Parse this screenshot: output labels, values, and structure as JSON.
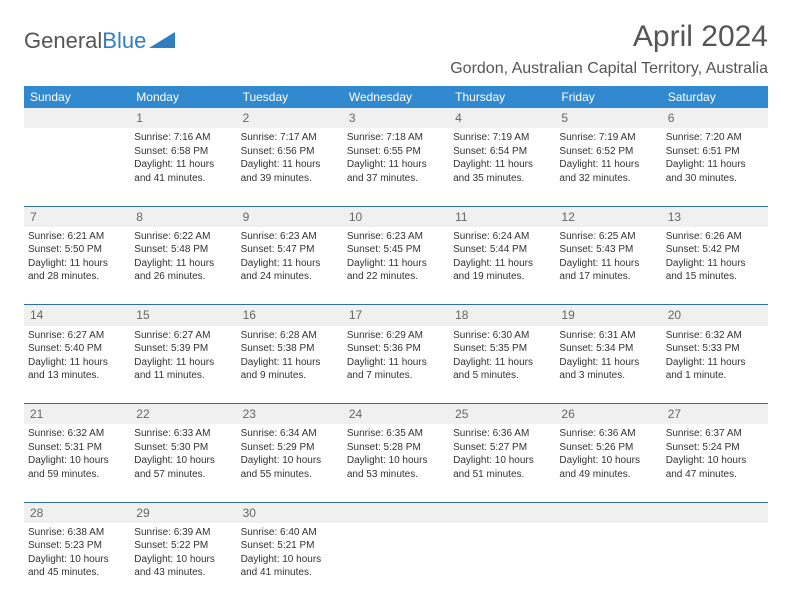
{
  "logo": {
    "text1": "General",
    "text2": "Blue"
  },
  "title": "April 2024",
  "location": "Gordon, Australian Capital Territory, Australia",
  "dayHeaders": [
    "Sunday",
    "Monday",
    "Tuesday",
    "Wednesday",
    "Thursday",
    "Friday",
    "Saturday"
  ],
  "styling": {
    "header_bg": "#3189cf",
    "header_fg": "#ffffff",
    "daynum_bg": "#f0f0f0",
    "border_color": "#2f6fa5",
    "title_color": "#555555",
    "body_font_size": 10,
    "header_font_size": 12,
    "title_font_size": 30
  },
  "weeks": [
    [
      {
        "num": "",
        "lines": []
      },
      {
        "num": "1",
        "lines": [
          "Sunrise: 7:16 AM",
          "Sunset: 6:58 PM",
          "Daylight: 11 hours",
          "and 41 minutes."
        ]
      },
      {
        "num": "2",
        "lines": [
          "Sunrise: 7:17 AM",
          "Sunset: 6:56 PM",
          "Daylight: 11 hours",
          "and 39 minutes."
        ]
      },
      {
        "num": "3",
        "lines": [
          "Sunrise: 7:18 AM",
          "Sunset: 6:55 PM",
          "Daylight: 11 hours",
          "and 37 minutes."
        ]
      },
      {
        "num": "4",
        "lines": [
          "Sunrise: 7:19 AM",
          "Sunset: 6:54 PM",
          "Daylight: 11 hours",
          "and 35 minutes."
        ]
      },
      {
        "num": "5",
        "lines": [
          "Sunrise: 7:19 AM",
          "Sunset: 6:52 PM",
          "Daylight: 11 hours",
          "and 32 minutes."
        ]
      },
      {
        "num": "6",
        "lines": [
          "Sunrise: 7:20 AM",
          "Sunset: 6:51 PM",
          "Daylight: 11 hours",
          "and 30 minutes."
        ]
      }
    ],
    [
      {
        "num": "7",
        "lines": [
          "Sunrise: 6:21 AM",
          "Sunset: 5:50 PM",
          "Daylight: 11 hours",
          "and 28 minutes."
        ]
      },
      {
        "num": "8",
        "lines": [
          "Sunrise: 6:22 AM",
          "Sunset: 5:48 PM",
          "Daylight: 11 hours",
          "and 26 minutes."
        ]
      },
      {
        "num": "9",
        "lines": [
          "Sunrise: 6:23 AM",
          "Sunset: 5:47 PM",
          "Daylight: 11 hours",
          "and 24 minutes."
        ]
      },
      {
        "num": "10",
        "lines": [
          "Sunrise: 6:23 AM",
          "Sunset: 5:45 PM",
          "Daylight: 11 hours",
          "and 22 minutes."
        ]
      },
      {
        "num": "11",
        "lines": [
          "Sunrise: 6:24 AM",
          "Sunset: 5:44 PM",
          "Daylight: 11 hours",
          "and 19 minutes."
        ]
      },
      {
        "num": "12",
        "lines": [
          "Sunrise: 6:25 AM",
          "Sunset: 5:43 PM",
          "Daylight: 11 hours",
          "and 17 minutes."
        ]
      },
      {
        "num": "13",
        "lines": [
          "Sunrise: 6:26 AM",
          "Sunset: 5:42 PM",
          "Daylight: 11 hours",
          "and 15 minutes."
        ]
      }
    ],
    [
      {
        "num": "14",
        "lines": [
          "Sunrise: 6:27 AM",
          "Sunset: 5:40 PM",
          "Daylight: 11 hours",
          "and 13 minutes."
        ]
      },
      {
        "num": "15",
        "lines": [
          "Sunrise: 6:27 AM",
          "Sunset: 5:39 PM",
          "Daylight: 11 hours",
          "and 11 minutes."
        ]
      },
      {
        "num": "16",
        "lines": [
          "Sunrise: 6:28 AM",
          "Sunset: 5:38 PM",
          "Daylight: 11 hours",
          "and 9 minutes."
        ]
      },
      {
        "num": "17",
        "lines": [
          "Sunrise: 6:29 AM",
          "Sunset: 5:36 PM",
          "Daylight: 11 hours",
          "and 7 minutes."
        ]
      },
      {
        "num": "18",
        "lines": [
          "Sunrise: 6:30 AM",
          "Sunset: 5:35 PM",
          "Daylight: 11 hours",
          "and 5 minutes."
        ]
      },
      {
        "num": "19",
        "lines": [
          "Sunrise: 6:31 AM",
          "Sunset: 5:34 PM",
          "Daylight: 11 hours",
          "and 3 minutes."
        ]
      },
      {
        "num": "20",
        "lines": [
          "Sunrise: 6:32 AM",
          "Sunset: 5:33 PM",
          "Daylight: 11 hours",
          "and 1 minute."
        ]
      }
    ],
    [
      {
        "num": "21",
        "lines": [
          "Sunrise: 6:32 AM",
          "Sunset: 5:31 PM",
          "Daylight: 10 hours",
          "and 59 minutes."
        ]
      },
      {
        "num": "22",
        "lines": [
          "Sunrise: 6:33 AM",
          "Sunset: 5:30 PM",
          "Daylight: 10 hours",
          "and 57 minutes."
        ]
      },
      {
        "num": "23",
        "lines": [
          "Sunrise: 6:34 AM",
          "Sunset: 5:29 PM",
          "Daylight: 10 hours",
          "and 55 minutes."
        ]
      },
      {
        "num": "24",
        "lines": [
          "Sunrise: 6:35 AM",
          "Sunset: 5:28 PM",
          "Daylight: 10 hours",
          "and 53 minutes."
        ]
      },
      {
        "num": "25",
        "lines": [
          "Sunrise: 6:36 AM",
          "Sunset: 5:27 PM",
          "Daylight: 10 hours",
          "and 51 minutes."
        ]
      },
      {
        "num": "26",
        "lines": [
          "Sunrise: 6:36 AM",
          "Sunset: 5:26 PM",
          "Daylight: 10 hours",
          "and 49 minutes."
        ]
      },
      {
        "num": "27",
        "lines": [
          "Sunrise: 6:37 AM",
          "Sunset: 5:24 PM",
          "Daylight: 10 hours",
          "and 47 minutes."
        ]
      }
    ],
    [
      {
        "num": "28",
        "lines": [
          "Sunrise: 6:38 AM",
          "Sunset: 5:23 PM",
          "Daylight: 10 hours",
          "and 45 minutes."
        ]
      },
      {
        "num": "29",
        "lines": [
          "Sunrise: 6:39 AM",
          "Sunset: 5:22 PM",
          "Daylight: 10 hours",
          "and 43 minutes."
        ]
      },
      {
        "num": "30",
        "lines": [
          "Sunrise: 6:40 AM",
          "Sunset: 5:21 PM",
          "Daylight: 10 hours",
          "and 41 minutes."
        ]
      },
      {
        "num": "",
        "lines": []
      },
      {
        "num": "",
        "lines": []
      },
      {
        "num": "",
        "lines": []
      },
      {
        "num": "",
        "lines": []
      }
    ]
  ]
}
